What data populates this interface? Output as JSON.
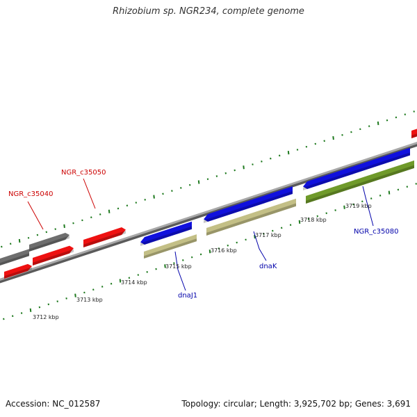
{
  "title": "Rhizobium sp. NGR234, complete genome",
  "footer": {
    "accession": "Accession: NC_012587",
    "summary": "Topology: circular; Length: 3,925,702 bp; Genes: 3,691"
  },
  "colors": {
    "backbone": "#8c8c8c",
    "tick": "#1f7a1f",
    "red_gene": "#ee1111",
    "gray_gene": "#6e6e6e",
    "blue_gene": "#1010dd",
    "khaki_gene": "#c3bf86",
    "olive_gene": "#6f9a2a",
    "red_label": "#cc0000",
    "blue_label": "#0000aa"
  },
  "scale_labels": [
    "3712 kbp",
    "3713 kbp",
    "3714 kbp",
    "3715 kbp",
    "3716 kbp",
    "3717 kbp",
    "3718 kbp",
    "3719 kbp"
  ],
  "gene_labels": [
    {
      "text": "NGR_c35040",
      "color": "red"
    },
    {
      "text": "NGR_c35050",
      "color": "red"
    },
    {
      "text": "dnaJ1",
      "color": "blue"
    },
    {
      "text": "dnaK",
      "color": "blue"
    },
    {
      "text": "NGR_c35080",
      "color": "blue"
    }
  ]
}
